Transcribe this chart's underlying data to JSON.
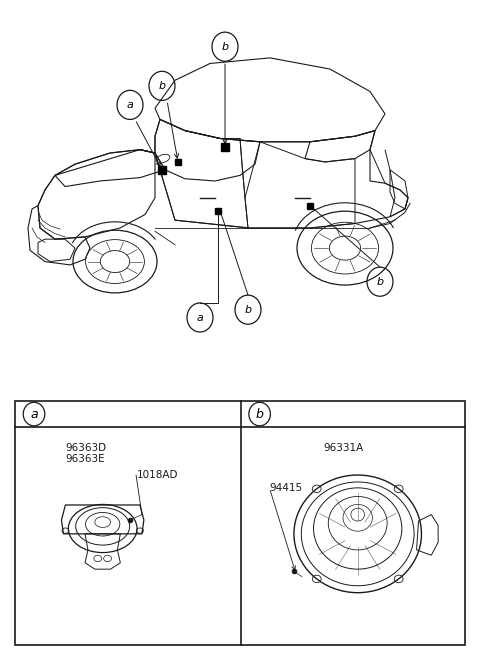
{
  "bg_color": "#ffffff",
  "line_color": "#1a1a1a",
  "fig_width": 4.8,
  "fig_height": 6.56,
  "dpi": 100,
  "part_a_codes": [
    "96363D",
    "96363E"
  ],
  "part_a_screw": "1018AD",
  "part_b_code": "96331A",
  "part_b_screw": "94415"
}
